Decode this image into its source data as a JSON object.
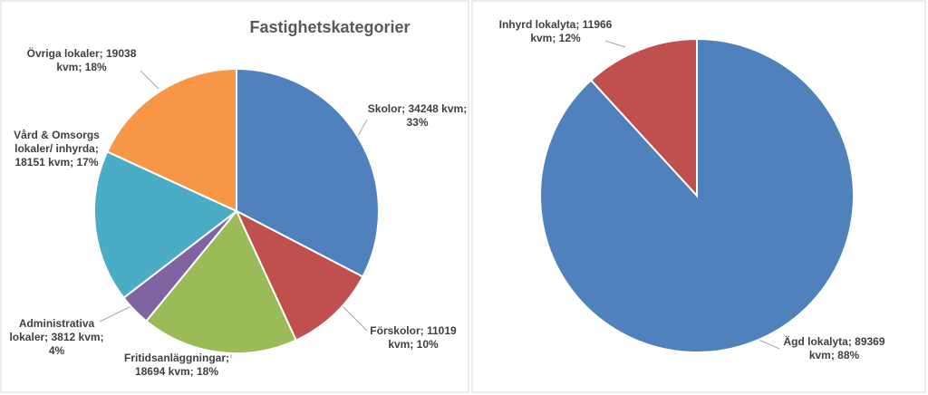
{
  "chart_data": [
    {
      "type": "pie",
      "title": "Fastighetskategorier",
      "values": [
        34248,
        11019,
        18694,
        3812,
        18151,
        19038
      ],
      "value_labels": [
        "Skolor; 34248 kvm; 33%",
        "Förskolor; 11019 kvm; 10%",
        "Fritidsanläggningar; 18694 kvm; 18%",
        "Administrativa lokaler; 3812 kvm; 4%",
        "Vård & Omsorgs lokaler/ inhyrda; 18151 kvm; 17%",
        "Övriga lokaler; 19038 kvm; 18%"
      ],
      "colors": [
        "#4f81bd",
        "#c0504d",
        "#9bbb59",
        "#8064a2",
        "#4bacc6",
        "#f79646"
      ]
    },
    {
      "type": "pie",
      "values": [
        89369,
        11966
      ],
      "value_labels": [
        "Ägd lokalyta; 89369 kvm; 88%",
        "Inhyrd lokalyta; 11966 kvm; 12%"
      ],
      "colors": [
        "#4f81bd",
        "#c0504d"
      ]
    }
  ]
}
